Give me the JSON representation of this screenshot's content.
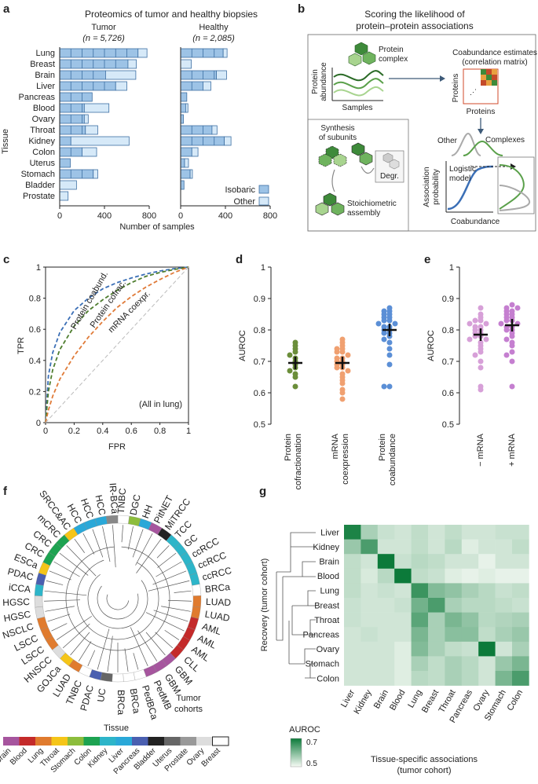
{
  "panel_labels": {
    "a": "a",
    "b": "b",
    "c": "c",
    "d": "d",
    "e": "e",
    "f": "f",
    "g": "g"
  },
  "panel_a": {
    "title": "Proteomics of tumor and healthy biopsies",
    "tumor_title": "Tumor",
    "tumor_n": "(n = 5,726)",
    "healthy_title": "Healthy",
    "healthy_n": "(n = 2,085)",
    "ylabel": "Tissue",
    "xlabel": "Number of samples",
    "ticks": [
      "0",
      "400",
      "800"
    ],
    "legend_isobaric": "Isobaric",
    "legend_other": "Other",
    "colors": {
      "isobaric": "#9dc3e6",
      "other": "#d6e9f8",
      "stroke": "#3d6fa3"
    }
  },
  "chart_data": [
    {
      "type": "bar",
      "title": "Tumor",
      "xlabel": "Number of samples",
      "ylabel": "Tissue",
      "xlim": [
        0,
        800
      ],
      "categories": [
        "Lung",
        "Breast",
        "Brain",
        "Liver",
        "Pancreas",
        "Blood",
        "Ovary",
        "Throat",
        "Kidney",
        "Colon",
        "Uterus",
        "Stomach",
        "Bladder",
        "Prostate"
      ],
      "series": [
        {
          "name": "Isobaric",
          "values": [
            700,
            610,
            410,
            500,
            290,
            220,
            220,
            230,
            100,
            200,
            95,
            300,
            0,
            0
          ]
        },
        {
          "name": "Other",
          "values": [
            80,
            75,
            270,
            100,
            0,
            220,
            35,
            110,
            520,
            130,
            0,
            40,
            150,
            75
          ]
        }
      ]
    },
    {
      "type": "bar",
      "title": "Healthy",
      "xlabel": "Number of samples",
      "ylabel": "Tissue",
      "xlim": [
        0,
        800
      ],
      "categories": [
        "Lung",
        "Breast",
        "Brain",
        "Liver",
        "Pancreas",
        "Blood",
        "Ovary",
        "Throat",
        "Kidney",
        "Colon",
        "Uterus",
        "Stomach",
        "Bladder",
        "Prostate"
      ],
      "series": [
        {
          "name": "Isobaric",
          "values": [
            380,
            0,
            320,
            200,
            55,
            45,
            25,
            280,
            390,
            100,
            35,
            85,
            30,
            0
          ]
        },
        {
          "name": "Other",
          "values": [
            35,
            95,
            90,
            70,
            0,
            20,
            0,
            45,
            60,
            55,
            35,
            20,
            0,
            0
          ]
        }
      ]
    },
    {
      "type": "line",
      "title": "",
      "xlabel": "FPR",
      "ylabel": "TPR",
      "xlim": [
        0,
        1
      ],
      "ylim": [
        0,
        1
      ],
      "series": [
        {
          "name": "Protein coabund.",
          "color": "#3b6fb6",
          "x": [
            0,
            0.02,
            0.05,
            0.1,
            0.2,
            0.3,
            0.4,
            0.5,
            0.6,
            0.7,
            0.8,
            0.9,
            1
          ],
          "y": [
            0,
            0.3,
            0.45,
            0.58,
            0.72,
            0.8,
            0.86,
            0.9,
            0.93,
            0.955,
            0.975,
            0.99,
            1
          ]
        },
        {
          "name": "Protein cofrac.",
          "color": "#4e7d2e",
          "x": [
            0,
            0.02,
            0.05,
            0.1,
            0.2,
            0.3,
            0.4,
            0.5,
            0.6,
            0.7,
            0.8,
            0.9,
            1
          ],
          "y": [
            0,
            0.2,
            0.34,
            0.47,
            0.62,
            0.72,
            0.79,
            0.85,
            0.9,
            0.94,
            0.965,
            0.985,
            1
          ]
        },
        {
          "name": "mRNA coexpr.",
          "color": "#e07b39",
          "x": [
            0,
            0.02,
            0.05,
            0.1,
            0.2,
            0.3,
            0.4,
            0.5,
            0.6,
            0.7,
            0.8,
            0.9,
            1
          ],
          "y": [
            0,
            0.08,
            0.17,
            0.28,
            0.43,
            0.55,
            0.65,
            0.74,
            0.81,
            0.87,
            0.92,
            0.965,
            1
          ]
        },
        {
          "name": "random",
          "color": "#bbbbbb",
          "x": [
            0,
            1
          ],
          "y": [
            0,
            1
          ]
        }
      ],
      "annotation": "(All in lung)",
      "ticks": [
        "0",
        "0.2",
        "0.4",
        "0.6",
        "0.8",
        "1"
      ]
    },
    {
      "type": "scatter",
      "title": "",
      "ylabel": "AUROC",
      "ylim": [
        0.5,
        1
      ],
      "ticks": [
        "0.5",
        "0.6",
        "0.7",
        "0.8",
        "0.9",
        "1"
      ],
      "categories": [
        "Protein cofractionation",
        "mRNA coexpression",
        "Protein coabundance"
      ],
      "means": [
        0.695,
        0.695,
        0.8
      ],
      "series": [
        {
          "name": "Protein cofractionation",
          "color": "#6b8e3a",
          "values": [
            0.76,
            0.75,
            0.74,
            0.73,
            0.72,
            0.71,
            0.7,
            0.69,
            0.68,
            0.67,
            0.66,
            0.65,
            0.62
          ]
        },
        {
          "name": "mRNA coexpression",
          "color": "#f0a070",
          "values": [
            0.77,
            0.76,
            0.75,
            0.74,
            0.74,
            0.73,
            0.73,
            0.72,
            0.71,
            0.71,
            0.7,
            0.7,
            0.69,
            0.69,
            0.68,
            0.68,
            0.67,
            0.66,
            0.65,
            0.64,
            0.63,
            0.61,
            0.6,
            0.58
          ]
        },
        {
          "name": "Protein coabundance",
          "color": "#5b8fd6",
          "values": [
            0.87,
            0.86,
            0.86,
            0.85,
            0.85,
            0.84,
            0.84,
            0.83,
            0.83,
            0.82,
            0.82,
            0.81,
            0.81,
            0.8,
            0.8,
            0.79,
            0.79,
            0.78,
            0.77,
            0.76,
            0.74,
            0.72,
            0.69,
            0.62,
            0.62
          ]
        }
      ]
    },
    {
      "type": "scatter",
      "title": "",
      "ylabel": "AUROC",
      "ylim": [
        0.5,
        1
      ],
      "ticks": [
        "0.5",
        "0.6",
        "0.7",
        "0.8",
        "0.9",
        "1"
      ],
      "categories": [
        "− mRNA",
        "+ mRNA"
      ],
      "means": [
        0.785,
        0.815
      ],
      "series": [
        {
          "name": "− mRNA",
          "color": "#d7a0d8",
          "values": [
            0.87,
            0.85,
            0.84,
            0.83,
            0.83,
            0.82,
            0.82,
            0.81,
            0.81,
            0.8,
            0.8,
            0.79,
            0.79,
            0.78,
            0.78,
            0.77,
            0.77,
            0.76,
            0.75,
            0.74,
            0.73,
            0.72,
            0.7,
            0.68,
            0.62,
            0.61
          ]
        },
        {
          "name": "+ mRNA",
          "color": "#c57fd0",
          "values": [
            0.88,
            0.87,
            0.87,
            0.86,
            0.86,
            0.85,
            0.85,
            0.84,
            0.84,
            0.83,
            0.83,
            0.82,
            0.82,
            0.81,
            0.81,
            0.8,
            0.8,
            0.79,
            0.78,
            0.77,
            0.76,
            0.75,
            0.73,
            0.72,
            0.7,
            0.62
          ]
        }
      ]
    },
    {
      "type": "heatmap",
      "title": "",
      "xlabel": "Tissue-specific associations (tumor cohort)",
      "ylabel": "Recovery (tumor cohort)",
      "categories": [
        "Liver",
        "Kidney",
        "Brain",
        "Blood",
        "Lung",
        "Breast",
        "Throat",
        "Pancreas",
        "Ovary",
        "Stomach",
        "Colon"
      ],
      "rows": [
        "Liver",
        "Kidney",
        "Brain",
        "Blood",
        "Lung",
        "Breast",
        "Throat",
        "Pancreas",
        "Ovary",
        "Stomach",
        "Colon"
      ],
      "values": [
        [
          0.78,
          0.6,
          0.56,
          0.55,
          0.57,
          0.55,
          0.57,
          0.55,
          0.55,
          0.56,
          0.56
        ],
        [
          0.62,
          0.72,
          0.55,
          0.55,
          0.57,
          0.55,
          0.58,
          0.53,
          0.55,
          0.55,
          0.57
        ],
        [
          0.57,
          0.55,
          0.8,
          0.56,
          0.58,
          0.57,
          0.55,
          0.55,
          0.52,
          0.55,
          0.55
        ],
        [
          0.57,
          0.54,
          0.58,
          0.8,
          0.57,
          0.56,
          0.53,
          0.52,
          0.53,
          0.52,
          0.52
        ],
        [
          0.57,
          0.55,
          0.56,
          0.55,
          0.74,
          0.65,
          0.63,
          0.6,
          0.58,
          0.56,
          0.57
        ],
        [
          0.56,
          0.55,
          0.55,
          0.56,
          0.67,
          0.72,
          0.6,
          0.58,
          0.58,
          0.57,
          0.56
        ],
        [
          0.56,
          0.55,
          0.55,
          0.55,
          0.7,
          0.6,
          0.66,
          0.63,
          0.58,
          0.59,
          0.6
        ],
        [
          0.55,
          0.56,
          0.55,
          0.55,
          0.66,
          0.6,
          0.64,
          0.64,
          0.57,
          0.6,
          0.62
        ],
        [
          0.55,
          0.55,
          0.55,
          0.53,
          0.65,
          0.6,
          0.57,
          0.56,
          0.8,
          0.55,
          0.6
        ],
        [
          0.55,
          0.55,
          0.55,
          0.53,
          0.6,
          0.57,
          0.6,
          0.58,
          0.55,
          0.62,
          0.66
        ],
        [
          0.55,
          0.55,
          0.55,
          0.53,
          0.58,
          0.57,
          0.6,
          0.58,
          0.55,
          0.66,
          0.72
        ]
      ],
      "colorbar_label": "AUROC",
      "colorbar_ticks": [
        "0.7",
        "0.5"
      ],
      "vmin": 0.5,
      "vmax": 0.8
    }
  ],
  "panel_b": {
    "title_line1": "Scoring the likelihood of",
    "title_line2": "protein–protein associations",
    "protein_complex_label": "Protein",
    "protein_complex_label2": "complex",
    "protein_axis_l1": "Protein",
    "protein_axis_l2": "abundance",
    "samples_label": "Samples",
    "coab_title_l1": "Coabundance estimates",
    "coab_title_l2": "(correlation matrix)",
    "proteins_y": "Proteins",
    "proteins_x": "Proteins",
    "synthesis_l1": "Synthesis",
    "synthesis_l2": "of subunits",
    "degr_label": "Degr.",
    "stoich_l1": "Stoichiometric",
    "stoich_l2": "assembly",
    "other_label": "Other",
    "complexes_label": "Complexes",
    "logistic_l1": "Logistic",
    "logistic_l2": "model",
    "assoc_l1": "Association",
    "assoc_l2": "probability",
    "coab_label": "Coabundance"
  },
  "panel_c": {
    "label_coab": "Protein coabund.",
    "label_cofrac": "Protein cofrac.",
    "label_mrna": "mRNA coexpr.",
    "annotation": "(All in lung)",
    "xlabel": "FPR",
    "ylabel": "TPR"
  },
  "panel_d": {
    "ylabel": "AUROC",
    "x1": "Protein",
    "x1b": "cofractionation",
    "x2": "mRNA",
    "x2b": "coexpression",
    "x3": "Protein",
    "x3b": "coabundance"
  },
  "panel_e": {
    "ylabel": "AUROC",
    "x1": "− mRNA",
    "x2": "+ mRNA"
  },
  "panel_f": {
    "cohorts": [
      "TNBC",
      "DGC",
      "HH",
      "PitNET",
      "MiTRCC",
      "TCC",
      "GC",
      "ccRCC",
      "ccRCC",
      "ccRCC",
      "BRCa",
      "LUAD",
      "LUAD",
      "AML",
      "AML",
      "AML",
      "CLL",
      "GBM",
      "GBM",
      "PedMB",
      "PedBCa",
      "BRCa",
      "BRCa",
      "UC",
      "PDAC",
      "TNBC",
      "LUAD",
      "GOJCa",
      "HNSCC",
      "LSCC",
      "LSCC",
      "NSCLC",
      "HGSC",
      "HGSC",
      "iCCA",
      "PDAC",
      "ESCa",
      "CRC",
      "CRC",
      "mCRC",
      "SRCC&AC",
      "HCC",
      "HCC",
      "HCC",
      "IR-BCa"
    ],
    "cohort_colors": [
      "#ffffff",
      "#8cbd3c",
      "#2aa8d8",
      "#a6559e",
      "#222222",
      "#2db5c9",
      "#2db5c9",
      "#2db5c9",
      "#2db5c9",
      "#2db5c9",
      "#ffffff",
      "#e07b2e",
      "#e07b2e",
      "#c42a2a",
      "#c42a2a",
      "#c42a2a",
      "#c42a2a",
      "#a6559e",
      "#a6559e",
      "#a6559e",
      "#ffffff",
      "#ffffff",
      "#ffffff",
      "#666666",
      "#4a5fb0",
      "#ffffff",
      "#e07b2e",
      "#f5c518",
      "#dddddd",
      "#e07b2e",
      "#e07b2e",
      "#e07b2e",
      "#dddddd",
      "#dddddd",
      "#2db5c9",
      "#4a5fb0",
      "#f5c518",
      "#1da351",
      "#1da351",
      "#1da351",
      "#f5c518",
      "#2aa8d8",
      "#2aa8d8",
      "#2aa8d8",
      "#888888"
    ],
    "legend_title": "Tissue",
    "tumor_cohorts_l1": "Tumor",
    "tumor_cohorts_l2": "cohorts",
    "tissues": [
      {
        "name": "Brain",
        "color": "#a6559e"
      },
      {
        "name": "Blood",
        "color": "#c42a2a"
      },
      {
        "name": "Lung",
        "color": "#e07b2e"
      },
      {
        "name": "Throat",
        "color": "#f5c518"
      },
      {
        "name": "Stomach",
        "color": "#8cbd3c"
      },
      {
        "name": "Colon",
        "color": "#1da351"
      },
      {
        "name": "Kidney",
        "color": "#2db5c9"
      },
      {
        "name": "Liver",
        "color": "#2aa8d8"
      },
      {
        "name": "Pancreas",
        "color": "#4a5fb0"
      },
      {
        "name": "Bladder",
        "color": "#222222"
      },
      {
        "name": "Uterus",
        "color": "#666666"
      },
      {
        "name": "Prostate",
        "color": "#999999"
      },
      {
        "name": "Ovary",
        "color": "#dddddd"
      },
      {
        "name": "Breast",
        "color": "#ffffff"
      }
    ]
  }
}
